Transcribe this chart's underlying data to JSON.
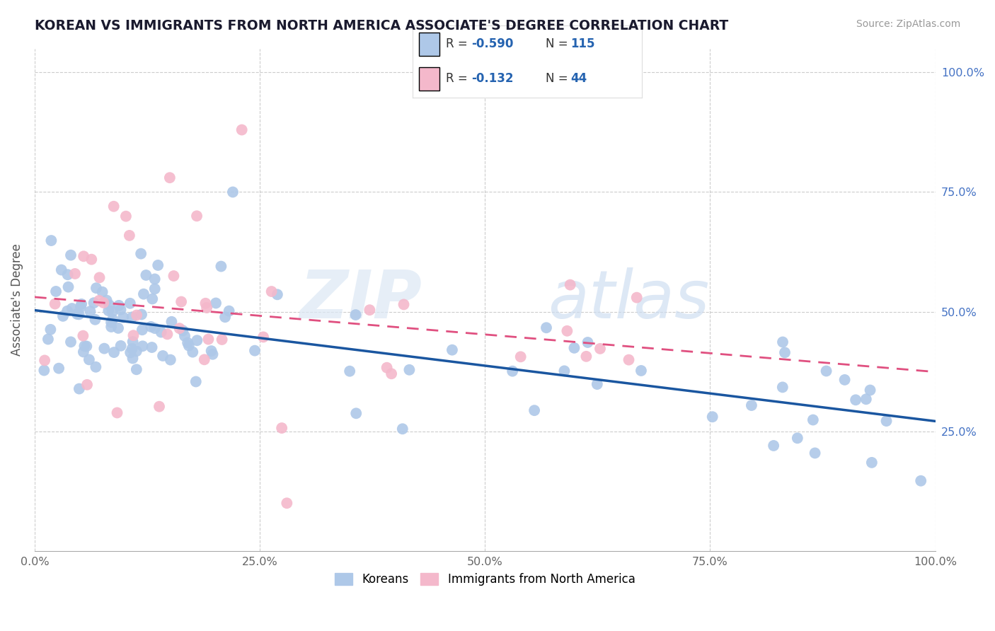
{
  "title": "KOREAN VS IMMIGRANTS FROM NORTH AMERICA ASSOCIATE'S DEGREE CORRELATION CHART",
  "source": "Source: ZipAtlas.com",
  "ylabel": "Associate's Degree",
  "xlim": [
    0.0,
    1.0
  ],
  "ylim": [
    0.0,
    1.05
  ],
  "x_ticks": [
    0.0,
    0.25,
    0.5,
    0.75,
    1.0
  ],
  "x_tick_labels": [
    "0.0%",
    "25.0%",
    "50.0%",
    "75.0%",
    "100.0%"
  ],
  "y_ticks": [
    0.25,
    0.5,
    0.75,
    1.0
  ],
  "y_tick_labels": [
    "25.0%",
    "50.0%",
    "75.0%",
    "100.0%"
  ],
  "korean_color": "#aec8e8",
  "immigrant_color": "#f4b8cb",
  "korean_line_color": "#1a56a0",
  "immigrant_line_color": "#e05080",
  "R_korean": -0.59,
  "N_korean": 115,
  "R_immigrant": -0.132,
  "N_immigrant": 44,
  "background_color": "#ffffff",
  "grid_color": "#cccccc",
  "title_color": "#1a1a2e",
  "right_axis_color": "#4472c4",
  "legend_text_color": "#2563b0",
  "watermark_color1": "#d8e4f0",
  "watermark_color2": "#c8d8ec"
}
